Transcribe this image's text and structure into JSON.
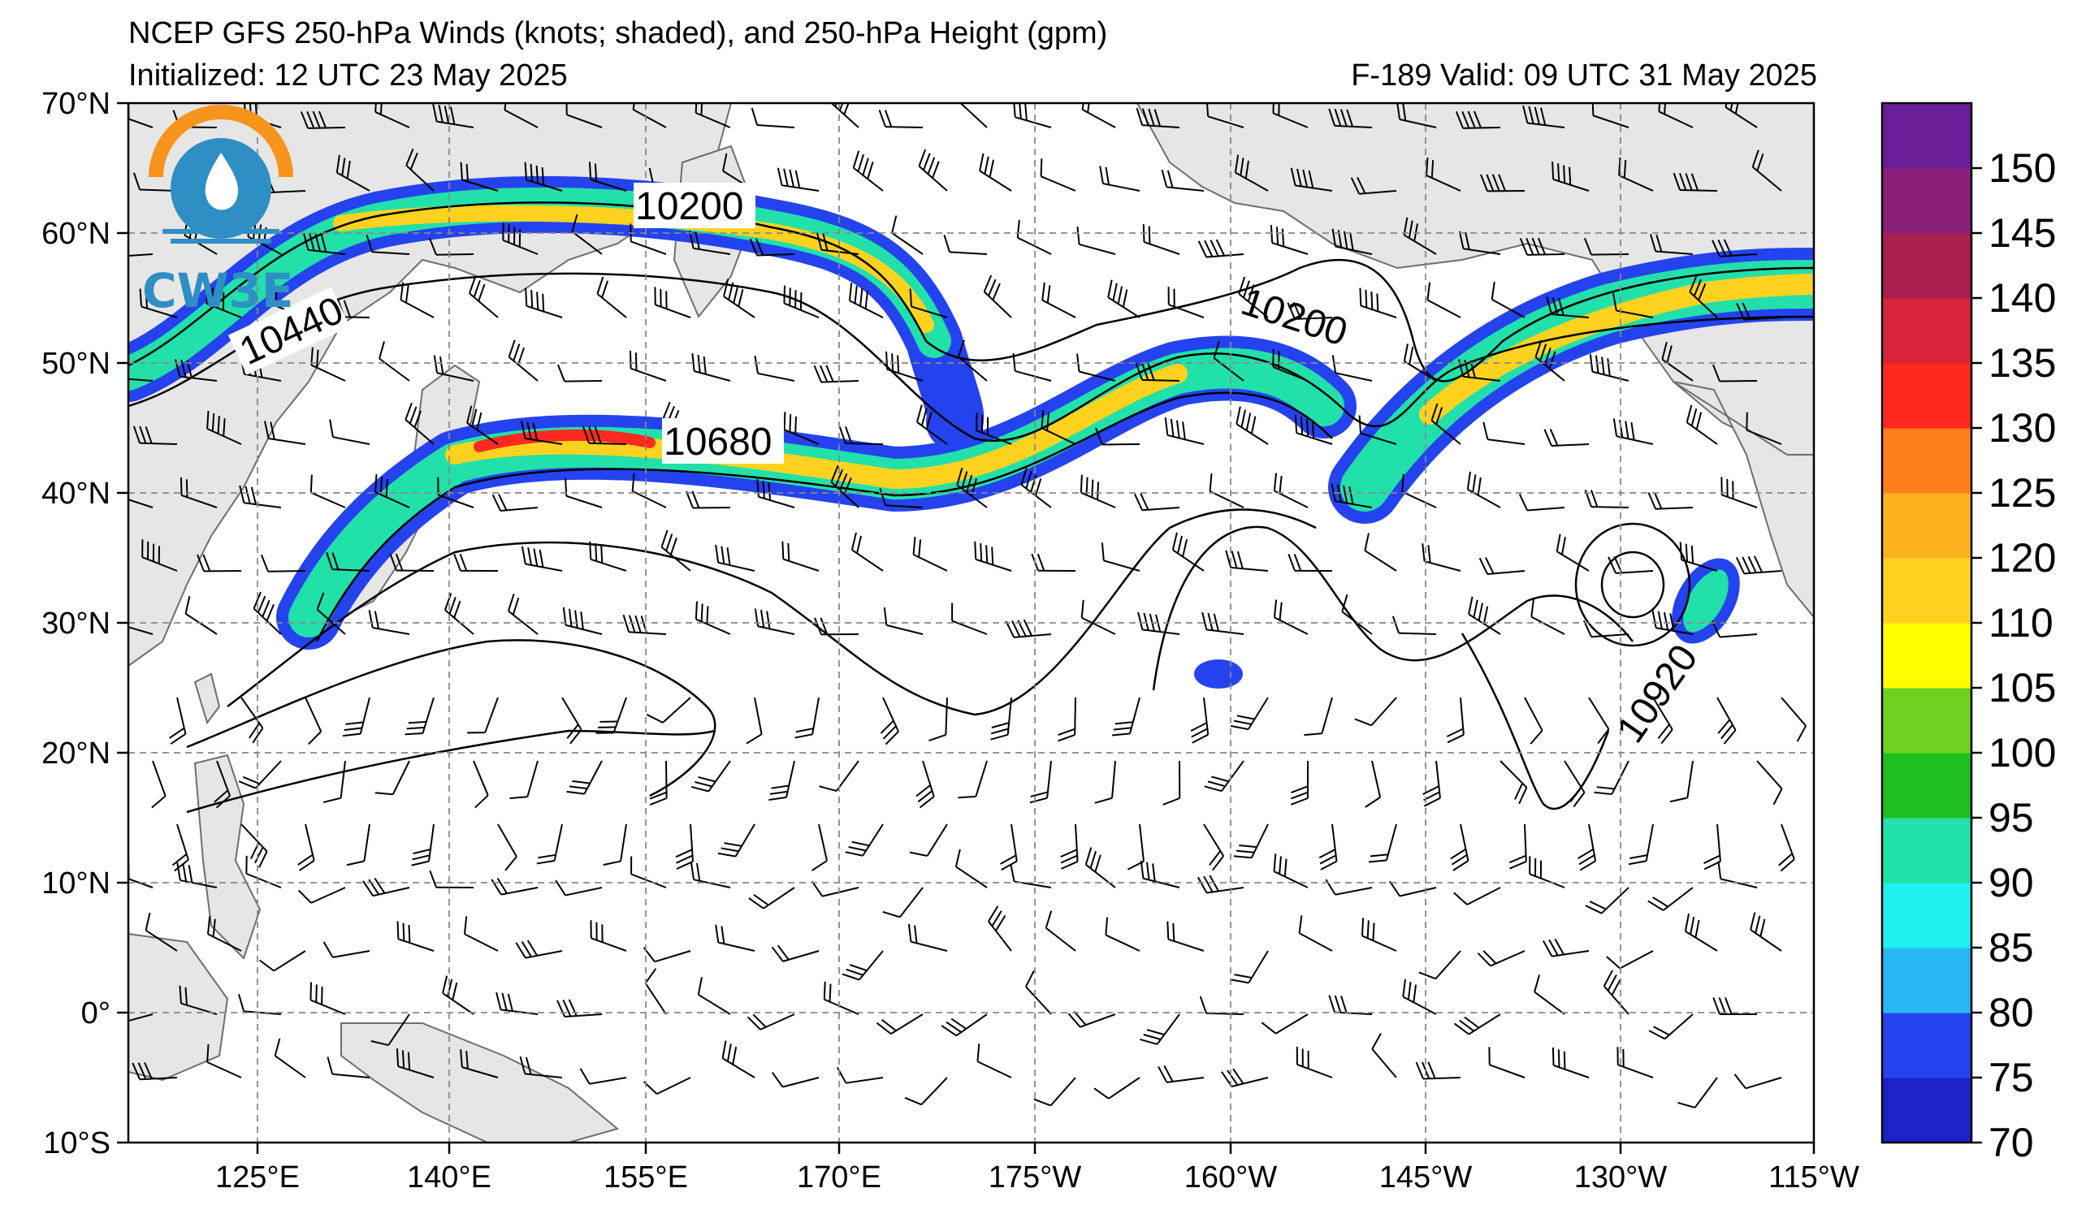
{
  "header": {
    "title": "NCEP GFS 250-hPa Winds (knots; shaded), and 250-hPa Height (gpm)",
    "initialized": "Initialized: 12 UTC 23 May 2025",
    "valid": "F-189  Valid: 09 UTC 31 May 2025"
  },
  "logo": {
    "text": "CW3E"
  },
  "map": {
    "lat_labels": [
      "70°N",
      "60°N",
      "50°N",
      "40°N",
      "30°N",
      "20°N",
      "10°N",
      "0°",
      "10°S"
    ],
    "lon_labels": [
      "125°E",
      "140°E",
      "155°E",
      "170°E",
      "175°W",
      "160°W",
      "145°W",
      "130°W",
      "115°W"
    ],
    "height_contour_labels": [
      "10200",
      "10440",
      "10680",
      "10200",
      "10920"
    ],
    "land_color": "#e6e6e6",
    "ocean_color": "#ffffff",
    "grid_style": "dashed gray"
  },
  "colorbar": {
    "ticks": [
      "70",
      "75",
      "80",
      "85",
      "90",
      "95",
      "100",
      "105",
      "110",
      "120",
      "125",
      "130",
      "135",
      "140",
      "145",
      "150"
    ],
    "colors": [
      "#1c22c8",
      "#2443ef",
      "#2ab7f5",
      "#1ff0f0",
      "#22e0aa",
      "#20bf20",
      "#6fd020",
      "#ffff00",
      "#ffd21f",
      "#ffb21f",
      "#ff7f1f",
      "#ff2a1f",
      "#d8253b",
      "#a81f50",
      "#8a1f78",
      "#6a1f98"
    ]
  }
}
